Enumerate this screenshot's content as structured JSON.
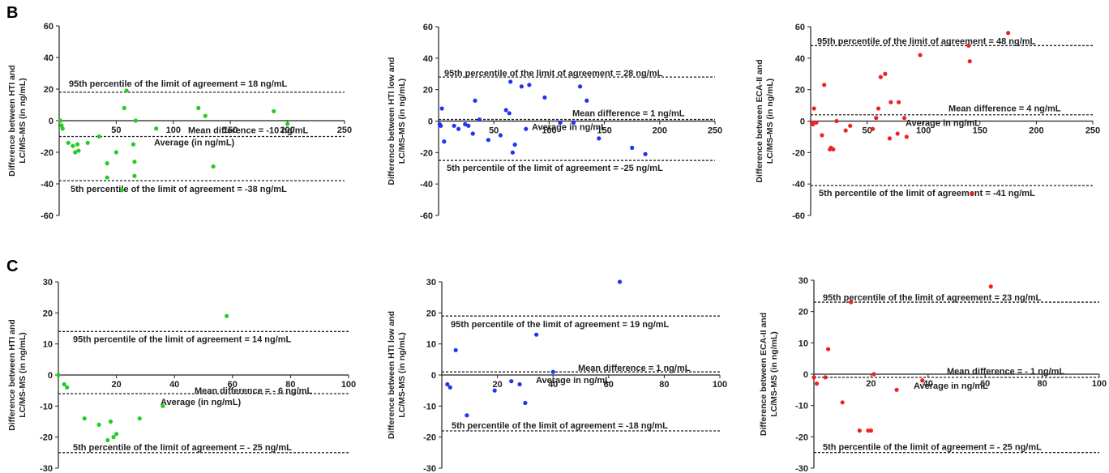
{
  "panels": [
    {
      "letter": "B"
    },
    {
      "letter": "C"
    }
  ],
  "chart_data": [
    {
      "type": "scatter",
      "panel": "B",
      "ylabel": [
        "Difference between HTI and",
        "LC/MS-MS (in ng/mL)"
      ],
      "xlabel": "Average (in ng/mL)",
      "xlim": [
        0,
        250
      ],
      "ylim": [
        -60,
        60
      ],
      "xticks": [
        50,
        100,
        150,
        200,
        250
      ],
      "yticks": [
        -60,
        -40,
        -20,
        0,
        20,
        40,
        60
      ],
      "color": "#22cc22",
      "points": [
        [
          1,
          0
        ],
        [
          2,
          -3
        ],
        [
          3,
          -5
        ],
        [
          8,
          -14
        ],
        [
          12,
          -16
        ],
        [
          14,
          -20
        ],
        [
          16,
          -15
        ],
        [
          17,
          -19
        ],
        [
          25,
          -14
        ],
        [
          35,
          -10
        ],
        [
          42,
          -27
        ],
        [
          42,
          -36
        ],
        [
          50,
          -20
        ],
        [
          55,
          -44
        ],
        [
          57,
          8
        ],
        [
          59,
          19
        ],
        [
          65,
          -15
        ],
        [
          66,
          -26
        ],
        [
          66,
          -35
        ],
        [
          67,
          0
        ],
        [
          85,
          -5
        ],
        [
          122,
          8
        ],
        [
          128,
          3
        ],
        [
          135,
          -29
        ],
        [
          188,
          6
        ],
        [
          200,
          -2
        ]
      ],
      "lines": [
        {
          "y": 18,
          "label": "95th percentile of the limit of agreement = 18 ng/mL"
        },
        {
          "y": -10,
          "label": "Mean difference = -10 ng/mL"
        },
        {
          "y": -38,
          "label": "5th percentile of the limit of agreement = -38 ng/mL"
        }
      ]
    },
    {
      "type": "scatter",
      "panel": "B",
      "ylabel": [
        "Difference between HTI low and",
        "LC/MS-MS (in ng/mL)"
      ],
      "xlabel": "Average in ng/mL",
      "xlim": [
        0,
        250
      ],
      "ylim": [
        -60,
        60
      ],
      "xticks": [
        50,
        100,
        150,
        200,
        250
      ],
      "yticks": [
        -60,
        -40,
        -20,
        0,
        20,
        40,
        60
      ],
      "color": "#2233ee",
      "points": [
        [
          1,
          -2
        ],
        [
          2,
          -3
        ],
        [
          3,
          8
        ],
        [
          5,
          -13
        ],
        [
          14,
          -3
        ],
        [
          18,
          -5
        ],
        [
          24,
          -2
        ],
        [
          27,
          -3
        ],
        [
          31,
          -8
        ],
        [
          33,
          13
        ],
        [
          37,
          1
        ],
        [
          45,
          -12
        ],
        [
          56,
          -9
        ],
        [
          61,
          7
        ],
        [
          64,
          5
        ],
        [
          65,
          25
        ],
        [
          67,
          -20
        ],
        [
          69,
          -15
        ],
        [
          75,
          22
        ],
        [
          79,
          -5
        ],
        [
          82,
          23
        ],
        [
          96,
          15
        ],
        [
          110,
          -1
        ],
        [
          122,
          -1
        ],
        [
          128,
          22
        ],
        [
          134,
          13
        ],
        [
          145,
          -11
        ],
        [
          175,
          -17
        ],
        [
          187,
          -21
        ]
      ],
      "lines": [
        {
          "y": 28,
          "label": "95th percentile of the limit of agreement = 28 ng/mL"
        },
        {
          "y": 1,
          "label": "Mean difference = 1 ng/mL"
        },
        {
          "y": -25,
          "label": "5th percentile of the limit of agreement = -25 ng/mL"
        }
      ]
    },
    {
      "type": "scatter",
      "panel": "B",
      "ylabel": [
        "Difference between ECA-II and",
        "LC/MS-MS (in ng/mL)"
      ],
      "xlabel": "Average in ng/mL",
      "xlim": [
        0,
        250
      ],
      "ylim": [
        -60,
        60
      ],
      "xticks": [
        50,
        100,
        150,
        200,
        250
      ],
      "yticks": [
        -60,
        -40,
        -20,
        0,
        20,
        40,
        60
      ],
      "color": "#ee2222",
      "points": [
        [
          1,
          -1
        ],
        [
          2,
          -2
        ],
        [
          3,
          8
        ],
        [
          5,
          -1
        ],
        [
          10,
          -9
        ],
        [
          12,
          23
        ],
        [
          17,
          -18
        ],
        [
          18,
          -17
        ],
        [
          20,
          -18
        ],
        [
          23,
          0
        ],
        [
          31,
          -6
        ],
        [
          35,
          -3
        ],
        [
          55,
          -5
        ],
        [
          58,
          2
        ],
        [
          60,
          8
        ],
        [
          62,
          28
        ],
        [
          66,
          30
        ],
        [
          70,
          -11
        ],
        [
          71,
          12
        ],
        [
          77,
          -8
        ],
        [
          78,
          12
        ],
        [
          83,
          2
        ],
        [
          85,
          -10
        ],
        [
          97,
          42
        ],
        [
          140,
          48
        ],
        [
          141,
          38
        ],
        [
          143,
          -46
        ],
        [
          175,
          56
        ]
      ],
      "lines": [
        {
          "y": 48,
          "label": "95th percentile of the limit of agreement = 48 ng/mL"
        },
        {
          "y": 4,
          "label": "Mean difference = 4 ng/mL"
        },
        {
          "y": -41,
          "label": "5th percentile of the limit of agreement = -41 ng/mL"
        }
      ]
    },
    {
      "type": "scatter",
      "panel": "C",
      "ylabel": [
        "Difference between HTI and",
        "LC/MS-MS (in ng/mL)"
      ],
      "xlabel": "Average (in ng/mL)",
      "xlim": [
        0,
        100
      ],
      "ylim": [
        -30,
        30
      ],
      "xticks": [
        20,
        40,
        60,
        80,
        100
      ],
      "yticks": [
        -30,
        -20,
        -10,
        0,
        10,
        20,
        30
      ],
      "color": "#22cc22",
      "points": [
        [
          0,
          0
        ],
        [
          2,
          -3
        ],
        [
          3,
          -4
        ],
        [
          9,
          -14
        ],
        [
          14,
          -16
        ],
        [
          17,
          -21
        ],
        [
          18,
          -15
        ],
        [
          19,
          -20
        ],
        [
          20,
          -19
        ],
        [
          28,
          -14
        ],
        [
          36,
          -10
        ],
        [
          58,
          19
        ]
      ],
      "lines": [
        {
          "y": 14,
          "label": "95th percentile of the limit of agreement = 14 ng/mL"
        },
        {
          "y": -6,
          "label": "Mean difference = - 6 ng/mL"
        },
        {
          "y": -25,
          "label": "5th percentile of the limit of agreement = - 25 ng/mL"
        }
      ]
    },
    {
      "type": "scatter",
      "panel": "C",
      "ylabel": [
        "Difference between HTI low and",
        "LC/MS-MS (in ng/mL)"
      ],
      "xlabel": "Average in ng/mL",
      "xlim": [
        0,
        100
      ],
      "ylim": [
        -30,
        30
      ],
      "xticks": [
        20,
        40,
        60,
        80,
        100
      ],
      "yticks": [
        -30,
        -20,
        -10,
        0,
        10,
        20,
        30
      ],
      "color": "#2233ee",
      "points": [
        [
          2,
          -3
        ],
        [
          3,
          -4
        ],
        [
          5,
          8
        ],
        [
          9,
          -13
        ],
        [
          19,
          -5
        ],
        [
          25,
          -2
        ],
        [
          28,
          -3
        ],
        [
          30,
          -9
        ],
        [
          34,
          13
        ],
        [
          40,
          1
        ],
        [
          64,
          30
        ]
      ],
      "lines": [
        {
          "y": 19,
          "label": "95th percentile of the limit of agreement = 19 ng/mL"
        },
        {
          "y": 1,
          "label": "Mean difference = 1 ng/mL"
        },
        {
          "y": -18,
          "label": "5th percentile of the limit of agreement = -18 ng/mL"
        }
      ]
    },
    {
      "type": "scatter",
      "panel": "C",
      "ylabel": [
        "Difference between ECA-II and",
        "LC/MS-MS (in ng/mL)"
      ],
      "xlabel": "Average in ng/mL",
      "xlim": [
        0,
        100
      ],
      "ylim": [
        -30,
        30
      ],
      "xticks": [
        20,
        40,
        60,
        80,
        100
      ],
      "yticks": [
        -30,
        -20,
        -10,
        0,
        10,
        20,
        30
      ],
      "color": "#ee2222",
      "points": [
        [
          0,
          -1
        ],
        [
          1,
          -3
        ],
        [
          4,
          -1
        ],
        [
          5,
          8
        ],
        [
          10,
          -9
        ],
        [
          13,
          23
        ],
        [
          16,
          -18
        ],
        [
          19,
          -18
        ],
        [
          20,
          -18
        ],
        [
          21,
          0
        ],
        [
          29,
          -5
        ],
        [
          38,
          -2
        ],
        [
          62,
          28
        ]
      ],
      "lines": [
        {
          "y": 23,
          "label": "95th percentile of the limit of agreement = 23 ng/mL"
        },
        {
          "y": -1,
          "label": "Mean difference = - 1 ng/mL"
        },
        {
          "y": -25,
          "label": "5th percentile of the limit of agreement = - 25 ng/mL"
        }
      ]
    }
  ]
}
